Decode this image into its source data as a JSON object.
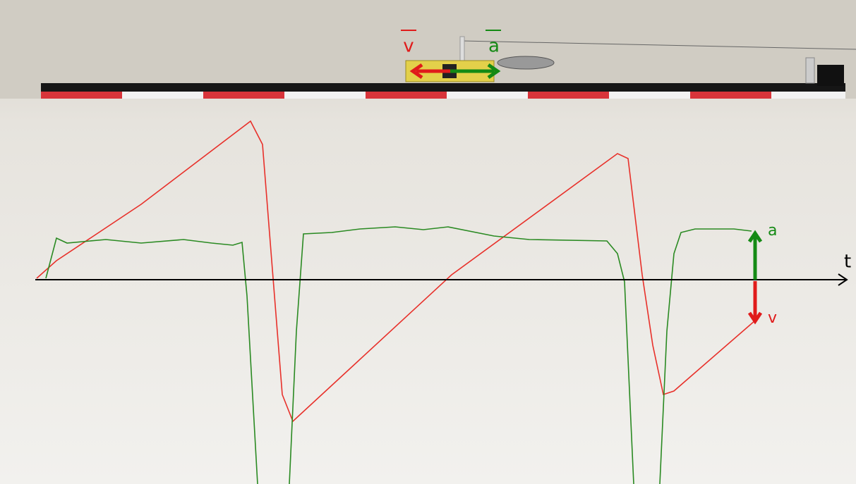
{
  "cart_labels": {
    "velocity": "v",
    "acceleration": "a"
  },
  "graph_labels": {
    "acceleration": "a",
    "velocity": "v",
    "time_axis": "t"
  }
}
